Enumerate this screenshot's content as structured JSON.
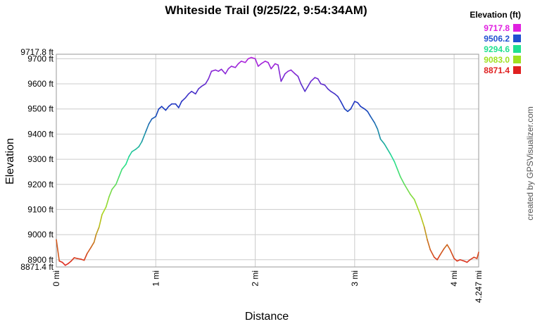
{
  "chart_data": {
    "type": "line",
    "title": "Whiteside Trail (9/25/22, 9:54:34AM)",
    "xlabel": "Distance",
    "ylabel": "Elevation",
    "x_unit": "mi",
    "y_unit": "ft",
    "xlim": [
      0,
      4.247
    ],
    "ylim": [
      8871.4,
      9717.8
    ],
    "x_ticks": [
      0,
      1,
      2,
      3,
      4
    ],
    "x_tick_labels": [
      "0 mi",
      "1 mi",
      "2 mi",
      "3 mi",
      "4 mi"
    ],
    "x_end_label": "4.247 mi",
    "y_ticks": [
      8900,
      9000,
      9100,
      9200,
      9300,
      9400,
      9500,
      9600,
      9700
    ],
    "y_tick_labels": [
      "8900 ft",
      "9000 ft",
      "9100 ft",
      "9200 ft",
      "9300 ft",
      "9400 ft",
      "9500 ft",
      "9600 ft",
      "9700 ft"
    ],
    "y_min_label": "8871.4 ft",
    "y_max_label": "9717.8 ft",
    "grid": true,
    "legend": {
      "title": "Elevation (ft)",
      "placement": "top-right",
      "entries": [
        {
          "label": "9717.8",
          "color": "#e020e0"
        },
        {
          "label": "9506.2",
          "color": "#2050d0"
        },
        {
          "label": "9294.6",
          "color": "#20e090"
        },
        {
          "label": "9083.0",
          "color": "#a0e020"
        },
        {
          "label": "8871.4",
          "color": "#e02020"
        }
      ]
    },
    "color_scale": {
      "stops": [
        {
          "value": 8871.4,
          "color": "#e02020"
        },
        {
          "value": 9083.0,
          "color": "#b0d818"
        },
        {
          "value": 9294.6,
          "color": "#20e090"
        },
        {
          "value": 9506.2,
          "color": "#1838c0"
        },
        {
          "value": 9717.8,
          "color": "#c020e0"
        }
      ]
    },
    "series": [
      {
        "x": [
          0.0,
          0.03,
          0.06,
          0.09,
          0.12,
          0.15,
          0.18,
          0.21,
          0.25,
          0.28,
          0.31,
          0.35,
          0.38,
          0.4,
          0.43,
          0.46,
          0.5,
          0.53,
          0.56,
          0.6,
          0.63,
          0.66,
          0.7,
          0.73,
          0.76,
          0.8,
          0.83,
          0.86,
          0.9,
          0.93,
          0.96,
          1.0,
          1.03,
          1.06,
          1.1,
          1.13,
          1.16,
          1.2,
          1.23,
          1.26,
          1.3,
          1.33,
          1.36,
          1.4,
          1.43,
          1.46,
          1.5,
          1.53,
          1.56,
          1.6,
          1.63,
          1.66,
          1.7,
          1.73,
          1.76,
          1.8,
          1.83,
          1.86,
          1.9,
          1.93,
          1.96,
          2.0,
          2.03,
          2.06,
          2.1,
          2.13,
          2.16,
          2.2,
          2.23,
          2.26,
          2.3,
          2.33,
          2.36,
          2.4,
          2.43,
          2.46,
          2.5,
          2.53,
          2.56,
          2.6,
          2.63,
          2.66,
          2.7,
          2.73,
          2.76,
          2.8,
          2.83,
          2.86,
          2.9,
          2.93,
          2.96,
          3.0,
          3.03,
          3.06,
          3.1,
          3.13,
          3.16,
          3.2,
          3.23,
          3.26,
          3.3,
          3.33,
          3.36,
          3.4,
          3.43,
          3.46,
          3.5,
          3.53,
          3.56,
          3.6,
          3.63,
          3.66,
          3.7,
          3.73,
          3.76,
          3.8,
          3.83,
          3.86,
          3.9,
          3.93,
          3.96,
          4.0,
          4.03,
          4.06,
          4.1,
          4.13,
          4.16,
          4.2,
          4.23,
          4.247
        ],
        "y": [
          8980,
          8895,
          8890,
          8878,
          8885,
          8895,
          8908,
          8905,
          8902,
          8898,
          8925,
          8950,
          8970,
          9000,
          9030,
          9080,
          9110,
          9150,
          9180,
          9200,
          9230,
          9260,
          9280,
          9310,
          9330,
          9340,
          9350,
          9370,
          9410,
          9440,
          9460,
          9470,
          9500,
          9510,
          9495,
          9510,
          9520,
          9520,
          9505,
          9530,
          9545,
          9560,
          9570,
          9560,
          9580,
          9590,
          9600,
          9620,
          9650,
          9655,
          9650,
          9658,
          9640,
          9660,
          9670,
          9665,
          9680,
          9690,
          9685,
          9700,
          9705,
          9700,
          9670,
          9680,
          9690,
          9685,
          9660,
          9680,
          9675,
          9610,
          9640,
          9650,
          9655,
          9640,
          9630,
          9600,
          9570,
          9590,
          9610,
          9625,
          9620,
          9600,
          9595,
          9580,
          9570,
          9560,
          9550,
          9530,
          9500,
          9490,
          9500,
          9530,
          9525,
          9510,
          9500,
          9490,
          9470,
          9445,
          9420,
          9380,
          9360,
          9340,
          9320,
          9290,
          9260,
          9230,
          9200,
          9180,
          9160,
          9140,
          9110,
          9080,
          9030,
          8980,
          8940,
          8910,
          8900,
          8920,
          8945,
          8960,
          8940,
          8905,
          8895,
          8900,
          8895,
          8890,
          8900,
          8910,
          8905,
          8930
        ]
      }
    ]
  },
  "credit": "created by GPSVisualizer.com"
}
